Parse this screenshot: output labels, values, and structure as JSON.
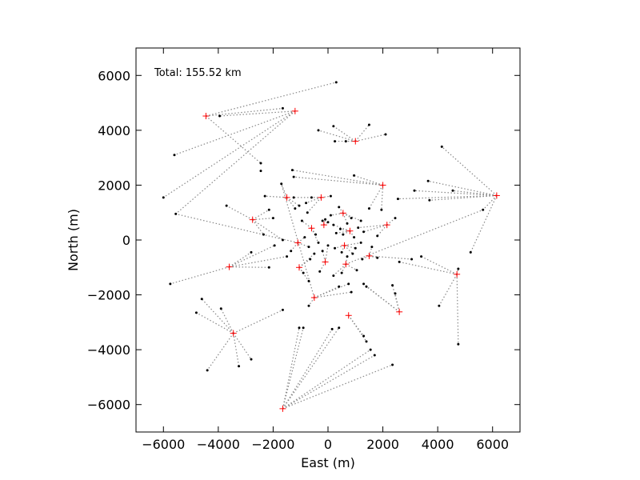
{
  "chart_data": {
    "type": "scatter",
    "annotation": "Total: 155.52 km",
    "xlabel": "East (m)",
    "ylabel": "North (m)",
    "xlim": [
      -7000,
      7000
    ],
    "ylim": [
      -7000,
      7000
    ],
    "xticks": [
      -6000,
      -4000,
      -2000,
      0,
      2000,
      4000,
      6000
    ],
    "yticks": [
      -6000,
      -4000,
      -2000,
      0,
      2000,
      4000,
      6000
    ],
    "xtick_labels": [
      "−6000",
      "−4000",
      "−2000",
      "0",
      "2000",
      "4000",
      "6000"
    ],
    "ytick_labels": [
      "−6000",
      "−4000",
      "−2000",
      "0",
      "2000",
      "4000",
      "6000"
    ],
    "grid": false,
    "colors": {
      "hub_marker": "#ff0000",
      "station_marker": "#000000",
      "link_line": "#888888"
    },
    "hubs": [
      {
        "x": -4450,
        "y": 4520
      },
      {
        "x": -1200,
        "y": 4700
      },
      {
        "x": 1000,
        "y": 3600
      },
      {
        "x": 2000,
        "y": 2000
      },
      {
        "x": 6150,
        "y": 1620
      },
      {
        "x": -1500,
        "y": 1550
      },
      {
        "x": -2750,
        "y": 740
      },
      {
        "x": -250,
        "y": 1550
      },
      {
        "x": 550,
        "y": 980
      },
      {
        "x": -600,
        "y": 430
      },
      {
        "x": -150,
        "y": 550
      },
      {
        "x": 800,
        "y": 330
      },
      {
        "x": 2150,
        "y": 550
      },
      {
        "x": -1100,
        "y": -100
      },
      {
        "x": 600,
        "y": -200
      },
      {
        "x": -3600,
        "y": -980
      },
      {
        "x": -1050,
        "y": -1000
      },
      {
        "x": -100,
        "y": -800
      },
      {
        "x": 650,
        "y": -880
      },
      {
        "x": 1500,
        "y": -580
      },
      {
        "x": 4700,
        "y": -1250
      },
      {
        "x": -500,
        "y": -2100
      },
      {
        "x": 2600,
        "y": -2620
      },
      {
        "x": 750,
        "y": -2750
      },
      {
        "x": -3450,
        "y": -3400
      },
      {
        "x": -1650,
        "y": -6150
      }
    ],
    "stations": [
      {
        "x": 300,
        "y": 5750
      },
      {
        "x": -1650,
        "y": 4800
      },
      {
        "x": -3950,
        "y": 4520
      },
      {
        "x": -5600,
        "y": 3100
      },
      {
        "x": -6000,
        "y": 1550
      },
      {
        "x": -5550,
        "y": 950
      },
      {
        "x": -2450,
        "y": 2800
      },
      {
        "x": -2450,
        "y": 2520
      },
      {
        "x": 200,
        "y": 4150
      },
      {
        "x": -350,
        "y": 4000
      },
      {
        "x": 1500,
        "y": 4200
      },
      {
        "x": 2100,
        "y": 3850
      },
      {
        "x": 250,
        "y": 3600
      },
      {
        "x": 650,
        "y": 3600
      },
      {
        "x": 950,
        "y": 2350
      },
      {
        "x": -1300,
        "y": 2550
      },
      {
        "x": -1250,
        "y": 2300
      },
      {
        "x": 4150,
        "y": 3400
      },
      {
        "x": 3650,
        "y": 2150
      },
      {
        "x": 3150,
        "y": 1800
      },
      {
        "x": 4550,
        "y": 1800
      },
      {
        "x": 3700,
        "y": 1450
      },
      {
        "x": 2550,
        "y": 1500
      },
      {
        "x": 5650,
        "y": 1100
      },
      {
        "x": 5200,
        "y": -450
      },
      {
        "x": -1700,
        "y": 2050
      },
      {
        "x": -2300,
        "y": 1600
      },
      {
        "x": -3700,
        "y": 1250
      },
      {
        "x": -2150,
        "y": 1100
      },
      {
        "x": -2000,
        "y": 800
      },
      {
        "x": -2350,
        "y": 200
      },
      {
        "x": -1650,
        "y": 0
      },
      {
        "x": -1950,
        "y": -200
      },
      {
        "x": -2800,
        "y": -450
      },
      {
        "x": -5750,
        "y": -1600
      },
      {
        "x": -2150,
        "y": -1000
      },
      {
        "x": -1500,
        "y": -600
      },
      {
        "x": 100,
        "y": 1600
      },
      {
        "x": 1500,
        "y": 1150
      },
      {
        "x": 1950,
        "y": 1100
      },
      {
        "x": 2450,
        "y": 800
      },
      {
        "x": 3050,
        "y": -700
      },
      {
        "x": 3400,
        "y": -600
      },
      {
        "x": 2600,
        "y": -800
      },
      {
        "x": 4750,
        "y": -1050
      },
      {
        "x": 4050,
        "y": -2400
      },
      {
        "x": 4750,
        "y": -3800
      },
      {
        "x": -4600,
        "y": -2150
      },
      {
        "x": -4800,
        "y": -2650
      },
      {
        "x": -3900,
        "y": -2500
      },
      {
        "x": -4400,
        "y": -4750
      },
      {
        "x": -3250,
        "y": -4600
      },
      {
        "x": -2800,
        "y": -4350
      },
      {
        "x": -1650,
        "y": -2550
      },
      {
        "x": -1050,
        "y": -3200
      },
      {
        "x": -900,
        "y": -3200
      },
      {
        "x": 150,
        "y": -3250
      },
      {
        "x": 400,
        "y": -3200
      },
      {
        "x": 1550,
        "y": -4000
      },
      {
        "x": 1700,
        "y": -4200
      },
      {
        "x": 2350,
        "y": -4550
      },
      {
        "x": 2450,
        "y": -1950
      },
      {
        "x": 2350,
        "y": -1650
      },
      {
        "x": 1400,
        "y": -1700
      },
      {
        "x": 1300,
        "y": -1600
      },
      {
        "x": 1300,
        "y": -3500
      },
      {
        "x": 1400,
        "y": -3700
      },
      {
        "x": -700,
        "y": -2400
      },
      {
        "x": -1350,
        "y": -400
      },
      {
        "x": -1250,
        "y": 1550
      },
      {
        "x": -800,
        "y": 1350
      },
      {
        "x": -950,
        "y": 700
      },
      {
        "x": -450,
        "y": 200
      },
      {
        "x": -350,
        "y": -100
      },
      {
        "x": -200,
        "y": 700
      },
      {
        "x": -100,
        "y": 750
      },
      {
        "x": 0,
        "y": 650
      },
      {
        "x": 100,
        "y": 900
      },
      {
        "x": 200,
        "y": 550
      },
      {
        "x": 300,
        "y": 250
      },
      {
        "x": 450,
        "y": 400
      },
      {
        "x": 550,
        "y": 200
      },
      {
        "x": 700,
        "y": 600
      },
      {
        "x": 850,
        "y": 800
      },
      {
        "x": 950,
        "y": 100
      },
      {
        "x": 1100,
        "y": 450
      },
      {
        "x": 1200,
        "y": -100
      },
      {
        "x": 1300,
        "y": 300
      },
      {
        "x": 1000,
        "y": -300
      },
      {
        "x": 900,
        "y": -500
      },
      {
        "x": 700,
        "y": -600
      },
      {
        "x": 500,
        "y": -450
      },
      {
        "x": 250,
        "y": -300
      },
      {
        "x": 0,
        "y": -200
      },
      {
        "x": -200,
        "y": -400
      },
      {
        "x": -500,
        "y": -500
      },
      {
        "x": -700,
        "y": -250
      },
      {
        "x": -850,
        "y": 100
      },
      {
        "x": -650,
        "y": -700
      },
      {
        "x": -900,
        "y": -1200
      },
      {
        "x": -700,
        "y": -1500
      },
      {
        "x": -300,
        "y": -1150
      },
      {
        "x": 200,
        "y": -1300
      },
      {
        "x": 500,
        "y": -1200
      },
      {
        "x": 750,
        "y": -1600
      },
      {
        "x": 850,
        "y": -1900
      },
      {
        "x": 400,
        "y": -1700
      },
      {
        "x": 1050,
        "y": -1100
      },
      {
        "x": 1250,
        "y": -700
      },
      {
        "x": 1600,
        "y": -250
      },
      {
        "x": 1800,
        "y": -650
      },
      {
        "x": 1800,
        "y": 150
      },
      {
        "x": -1200,
        "y": 1150
      },
      {
        "x": -750,
        "y": 1000
      },
      {
        "x": 1200,
        "y": 700
      },
      {
        "x": 400,
        "y": 1200
      },
      {
        "x": -1050,
        "y": 1250
      },
      {
        "x": -600,
        "y": 1550
      }
    ],
    "links": [
      [
        0,
        0
      ],
      [
        0,
        1
      ],
      [
        1,
        2
      ],
      [
        1,
        3
      ],
      [
        1,
        4
      ],
      [
        1,
        5
      ],
      [
        2,
        8
      ],
      [
        2,
        9
      ],
      [
        2,
        10
      ],
      [
        2,
        11
      ],
      [
        2,
        12
      ],
      [
        2,
        13
      ],
      [
        3,
        14
      ],
      [
        3,
        15
      ],
      [
        3,
        16
      ],
      [
        4,
        17
      ],
      [
        4,
        18
      ],
      [
        4,
        19
      ],
      [
        4,
        20
      ],
      [
        4,
        21
      ],
      [
        4,
        22
      ],
      [
        4,
        23
      ],
      [
        4,
        24
      ],
      [
        5,
        25
      ],
      [
        5,
        26
      ],
      [
        6,
        27
      ],
      [
        6,
        28
      ],
      [
        6,
        29
      ],
      [
        6,
        30
      ],
      [
        6,
        31
      ],
      [
        15,
        32
      ],
      [
        15,
        33
      ],
      [
        15,
        34
      ],
      [
        15,
        35
      ],
      [
        15,
        36
      ],
      [
        7,
        37
      ],
      [
        3,
        38
      ],
      [
        3,
        39
      ],
      [
        12,
        40
      ],
      [
        19,
        41
      ],
      [
        20,
        42
      ],
      [
        20,
        43
      ],
      [
        20,
        44
      ],
      [
        20,
        45
      ],
      [
        20,
        46
      ],
      [
        24,
        47
      ],
      [
        24,
        48
      ],
      [
        24,
        49
      ],
      [
        24,
        50
      ],
      [
        24,
        51
      ],
      [
        24,
        52
      ],
      [
        24,
        53
      ],
      [
        25,
        54
      ],
      [
        25,
        55
      ],
      [
        25,
        56
      ],
      [
        25,
        57
      ],
      [
        25,
        58
      ],
      [
        25,
        59
      ],
      [
        25,
        60
      ],
      [
        22,
        61
      ],
      [
        22,
        62
      ],
      [
        22,
        63
      ],
      [
        22,
        64
      ],
      [
        23,
        65
      ],
      [
        23,
        66
      ],
      [
        21,
        67
      ],
      [
        13,
        68
      ],
      [
        7,
        69
      ],
      [
        7,
        70
      ],
      [
        9,
        71
      ],
      [
        9,
        72
      ],
      [
        9,
        73
      ],
      [
        10,
        74
      ],
      [
        10,
        75
      ],
      [
        10,
        76
      ],
      [
        8,
        77
      ],
      [
        11,
        78
      ],
      [
        11,
        79
      ],
      [
        11,
        80
      ],
      [
        11,
        81
      ],
      [
        8,
        82
      ],
      [
        8,
        83
      ],
      [
        11,
        84
      ],
      [
        12,
        85
      ],
      [
        14,
        86
      ],
      [
        12,
        87
      ],
      [
        14,
        88
      ],
      [
        14,
        89
      ],
      [
        18,
        90
      ],
      [
        14,
        91
      ],
      [
        14,
        92
      ],
      [
        17,
        93
      ],
      [
        17,
        94
      ],
      [
        16,
        95
      ],
      [
        13,
        96
      ],
      [
        13,
        97
      ],
      [
        16,
        98
      ],
      [
        16,
        99
      ],
      [
        16,
        100
      ],
      [
        17,
        101
      ],
      [
        18,
        102
      ],
      [
        18,
        103
      ],
      [
        21,
        104
      ],
      [
        21,
        105
      ],
      [
        21,
        106
      ],
      [
        18,
        107
      ],
      [
        19,
        108
      ],
      [
        19,
        109
      ],
      [
        19,
        110
      ],
      [
        12,
        111
      ],
      [
        5,
        112
      ],
      [
        7,
        113
      ],
      [
        8,
        114
      ],
      [
        8,
        115
      ],
      [
        5,
        116
      ],
      [
        7,
        117
      ],
      [
        18,
        23
      ],
      [
        21,
        25
      ],
      [
        13,
        5
      ],
      [
        0,
        6
      ]
    ]
  }
}
